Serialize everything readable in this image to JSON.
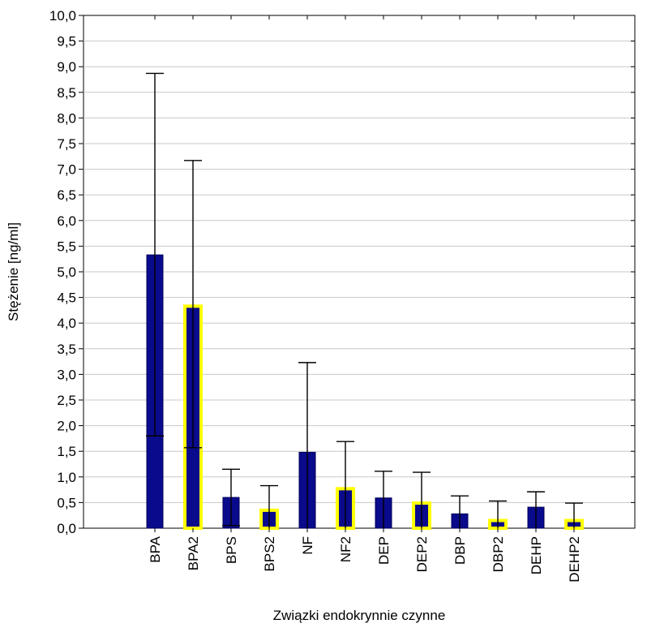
{
  "chart_data": {
    "type": "bar",
    "xlabel": "Związki endokrynnie czynne",
    "ylabel": "Stężenie [ng/ml]",
    "ylim": [
      0,
      10
    ],
    "y_ticks": [
      "0,0",
      "0,5",
      "1,0",
      "1,5",
      "2,0",
      "2,5",
      "3,0",
      "3,5",
      "4,0",
      "4,5",
      "5,0",
      "5,5",
      "6,0",
      "6,5",
      "7,0",
      "7,5",
      "8,0",
      "8,5",
      "9,0",
      "9,5",
      "10,0"
    ],
    "grid": true,
    "categories": [
      "BPA",
      "BPA2",
      "BPS",
      "BPS2",
      "NF",
      "NF2",
      "DEP",
      "DEP2",
      "DBP",
      "DBP2",
      "DEHP",
      "DEHP2"
    ],
    "values": [
      5.33,
      4.33,
      0.6,
      0.35,
      1.48,
      0.77,
      0.59,
      0.49,
      0.28,
      0.15,
      0.41,
      0.15
    ],
    "error_upper": [
      8.87,
      7.17,
      1.15,
      0.83,
      3.23,
      1.69,
      1.11,
      1.09,
      0.63,
      0.53,
      0.71,
      0.49
    ],
    "error_lower": [
      1.8,
      1.57,
      0.05,
      0.0,
      0.0,
      0.0,
      0.0,
      0.0,
      0.0,
      0.0,
      0.0,
      0.0
    ],
    "highlighted": [
      false,
      true,
      false,
      true,
      false,
      true,
      false,
      true,
      false,
      true,
      false,
      true
    ],
    "colors": {
      "bar_fill": "#0a0a8c",
      "highlight_stroke": "#ffff00",
      "grid": "#c8c8c8",
      "axis": "#000000"
    }
  }
}
